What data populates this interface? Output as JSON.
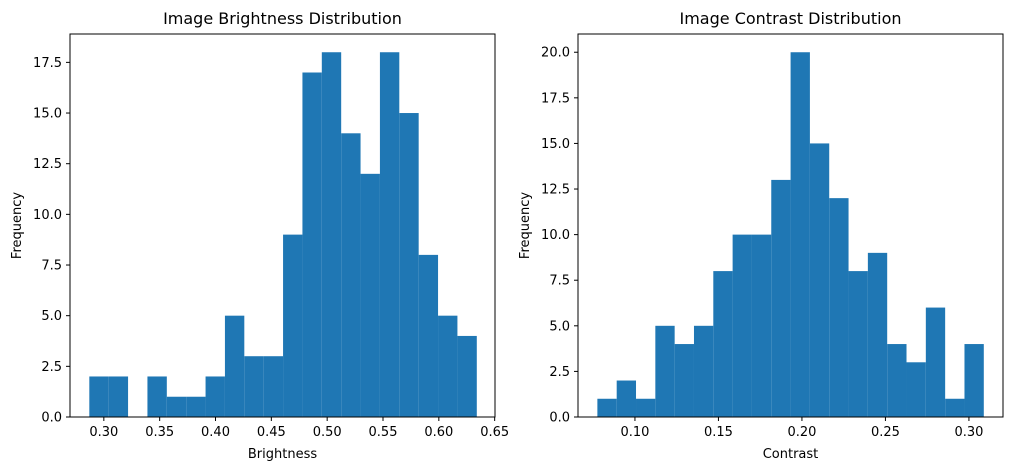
{
  "chart_data": [
    {
      "type": "bar",
      "title": "Image Brightness Distribution",
      "xlabel": "Brightness",
      "ylabel": "Frequency",
      "bar_color": "#1f77b4",
      "bin_start": 0.287,
      "bin_width": 0.01735,
      "counts": [
        2,
        2,
        0,
        2,
        1,
        1,
        2,
        5,
        3,
        3,
        9,
        17,
        18,
        14,
        12,
        18,
        15,
        8,
        5,
        4
      ],
      "xlim": [
        0.2697,
        0.6503
      ],
      "ylim": [
        0,
        18.9
      ],
      "xticks": [
        0.3,
        0.35,
        0.4,
        0.45,
        0.5,
        0.55,
        0.6,
        0.65
      ],
      "xtick_labels": [
        "0.30",
        "0.35",
        "0.40",
        "0.45",
        "0.50",
        "0.55",
        "0.60",
        "0.65"
      ],
      "yticks": [
        0,
        2.5,
        5,
        7.5,
        10,
        12.5,
        15,
        17.5
      ],
      "ytick_labels": [
        "0.0",
        "2.5",
        "5.0",
        "7.5",
        "10.0",
        "12.5",
        "15.0",
        "17.5"
      ]
    },
    {
      "type": "bar",
      "title": "Image Contrast Distribution",
      "xlabel": "Contrast",
      "ylabel": "Frequency",
      "bar_color": "#1f77b4",
      "bin_start": 0.0775,
      "bin_width": 0.01157,
      "counts": [
        1,
        2,
        1,
        5,
        4,
        5,
        8,
        10,
        10,
        13,
        20,
        15,
        12,
        8,
        9,
        4,
        3,
        6,
        1,
        4
      ],
      "xlim": [
        0.0659,
        0.3204
      ],
      "ylim": [
        0,
        21.0
      ],
      "xticks": [
        0.1,
        0.15,
        0.2,
        0.25,
        0.3
      ],
      "xtick_labels": [
        "0.10",
        "0.15",
        "0.20",
        "0.25",
        "0.30"
      ],
      "yticks": [
        0,
        2.5,
        5,
        7.5,
        10,
        12.5,
        15,
        17.5,
        20
      ],
      "ytick_labels": [
        "0.0",
        "2.5",
        "5.0",
        "7.5",
        "10.0",
        "12.5",
        "15.0",
        "17.5",
        "20.0"
      ]
    }
  ]
}
